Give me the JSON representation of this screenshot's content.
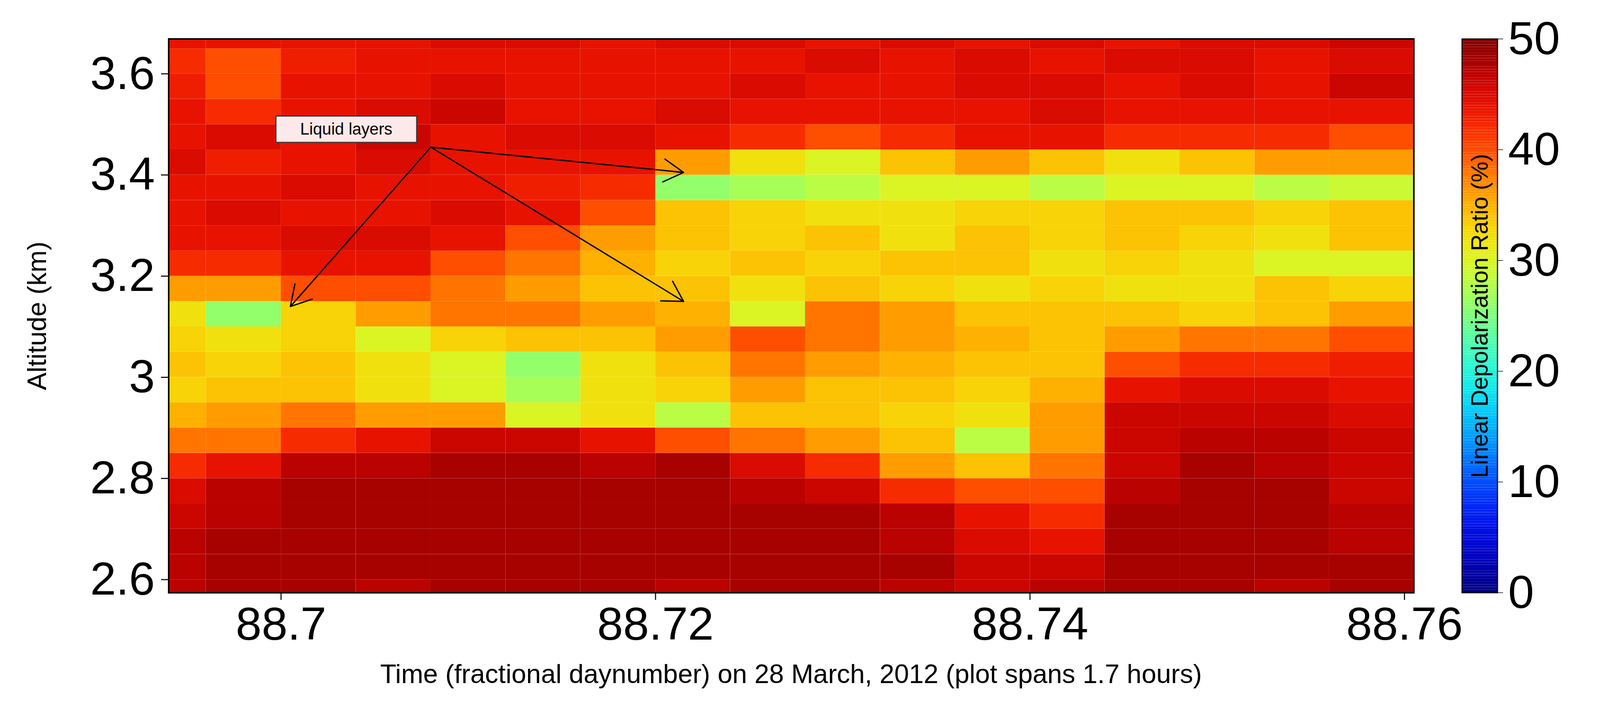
{
  "chart_data": {
    "type": "heatmap",
    "x_label": "Time (fractional daynumber) on 28 March, 2012 (plot spans 1.7 hours)",
    "y_label": "Altitude (km)",
    "xlim": [
      88.694,
      88.7605
    ],
    "ylim": [
      2.574,
      3.669
    ],
    "xticks": [
      88.7,
      88.72,
      88.74,
      88.76
    ],
    "yticks": [
      2.6,
      2.8,
      3,
      3.2,
      3.4,
      3.6
    ],
    "time_edges": [
      88.692,
      88.696,
      88.7,
      88.704,
      88.708,
      88.712,
      88.716,
      88.72,
      88.724,
      88.728,
      88.732,
      88.736,
      88.74,
      88.744,
      88.748,
      88.752,
      88.756,
      88.764
    ],
    "altitude_edges": [
      2.55,
      2.6,
      2.65,
      2.7,
      2.75,
      2.8,
      2.85,
      2.9,
      2.95,
      3.0,
      3.05,
      3.1,
      3.15,
      3.2,
      3.25,
      3.3,
      3.35,
      3.4,
      3.45,
      3.5,
      3.55,
      3.6,
      3.65,
      3.7
    ],
    "values": [
      [
        47,
        48,
        48,
        47,
        48,
        48,
        48,
        47,
        48,
        48,
        47,
        46,
        47,
        48,
        48,
        47,
        48
      ],
      [
        47,
        48,
        48,
        48,
        48,
        48,
        48,
        48,
        48,
        48,
        48,
        46,
        46,
        48,
        48,
        48,
        48
      ],
      [
        47,
        48,
        48,
        48,
        48,
        48,
        48,
        48,
        48,
        48,
        47,
        45,
        44,
        48,
        48,
        48,
        47
      ],
      [
        46,
        47,
        48,
        48,
        48,
        48,
        48,
        48,
        48,
        48,
        47,
        44,
        42,
        48,
        48,
        48,
        47
      ],
      [
        45,
        47,
        48,
        48,
        48,
        48,
        48,
        48,
        47,
        46,
        42,
        40,
        40,
        47,
        48,
        48,
        46
      ],
      [
        42,
        44,
        47,
        47,
        48,
        48,
        47,
        48,
        45,
        42,
        36,
        34,
        38,
        46,
        48,
        47,
        46
      ],
      [
        38,
        38,
        42,
        44,
        46,
        46,
        44,
        40,
        38,
        36,
        34,
        28,
        36,
        46,
        47,
        47,
        46
      ],
      [
        35,
        36,
        38,
        36,
        36,
        30,
        32,
        28,
        34,
        34,
        33,
        32,
        36,
        46,
        46,
        46,
        45
      ],
      [
        33,
        34,
        34,
        32,
        30,
        27,
        32,
        33,
        36,
        34,
        34,
        33,
        35,
        44,
        45,
        45,
        44
      ],
      [
        34,
        33,
        34,
        32,
        30,
        26,
        32,
        34,
        38,
        36,
        35,
        34,
        34,
        40,
        42,
        42,
        43
      ],
      [
        33,
        32,
        33,
        30,
        33,
        34,
        34,
        36,
        40,
        38,
        36,
        35,
        34,
        36,
        38,
        38,
        40
      ],
      [
        32,
        26,
        33,
        36,
        38,
        38,
        36,
        35,
        30,
        38,
        36,
        34,
        34,
        34,
        33,
        34,
        36
      ],
      [
        36,
        36,
        40,
        40,
        38,
        36,
        34,
        34,
        32,
        34,
        33,
        32,
        33,
        32,
        32,
        34,
        33
      ],
      [
        42,
        42,
        44,
        44,
        40,
        38,
        35,
        33,
        34,
        33,
        34,
        34,
        32,
        33,
        32,
        30,
        30
      ],
      [
        44,
        44,
        45,
        45,
        44,
        40,
        36,
        34,
        33,
        34,
        32,
        34,
        33,
        34,
        33,
        32,
        34
      ],
      [
        44,
        45,
        44,
        44,
        45,
        44,
        40,
        34,
        33,
        32,
        32,
        33,
        33,
        34,
        34,
        33,
        34
      ],
      [
        44,
        44,
        45,
        44,
        44,
        43,
        42,
        26,
        27,
        28,
        30,
        30,
        28,
        30,
        30,
        28,
        29
      ],
      [
        45,
        43,
        44,
        45,
        44,
        44,
        44,
        36,
        32,
        30,
        34,
        36,
        34,
        32,
        34,
        36,
        36
      ],
      [
        44,
        45,
        44,
        46,
        44,
        45,
        45,
        44,
        42,
        40,
        42,
        44,
        44,
        42,
        42,
        42,
        40
      ],
      [
        44,
        42,
        44,
        45,
        46,
        44,
        44,
        45,
        44,
        44,
        44,
        44,
        45,
        44,
        44,
        44,
        44
      ],
      [
        43,
        40,
        44,
        44,
        45,
        44,
        44,
        44,
        45,
        44,
        44,
        45,
        45,
        44,
        45,
        44,
        46
      ],
      [
        42,
        40,
        43,
        44,
        44,
        44,
        44,
        44,
        44,
        45,
        44,
        45,
        44,
        45,
        45,
        44,
        45
      ],
      [
        44,
        44,
        44,
        44,
        45,
        45,
        44,
        45,
        45,
        44,
        45,
        44,
        45,
        44,
        45,
        45,
        46
      ]
    ],
    "colorbar": {
      "label": "Linear Depolarization Ratio (%)",
      "range": [
        0,
        50
      ],
      "ticks": [
        0,
        10,
        20,
        30,
        40,
        50
      ]
    },
    "annotations": [
      {
        "text": "Liquid layers",
        "x": 88.7035,
        "y": 3.49,
        "arrow_from": {
          "x": 88.708,
          "y": 3.455
        },
        "arrows": [
          {
            "x": 88.7005,
            "y": 3.14
          },
          {
            "x": 88.7215,
            "y": 3.405
          },
          {
            "x": 88.7215,
            "y": 3.15
          }
        ]
      }
    ]
  }
}
